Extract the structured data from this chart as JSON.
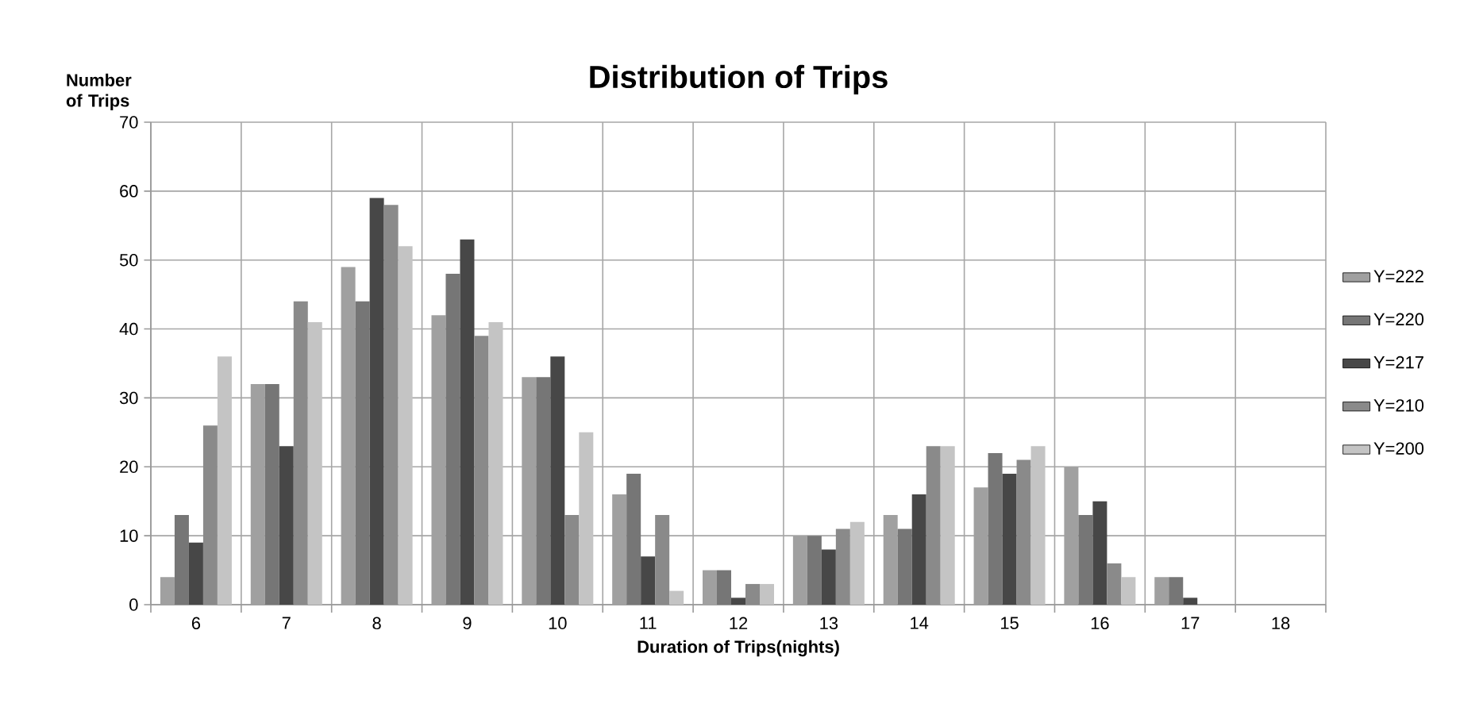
{
  "chart_data": {
    "type": "bar",
    "title": "Distribution of Trips",
    "xlabel": "Duration of Trips(nights)",
    "ylabel": "Number of Trips",
    "categories": [
      "6",
      "7",
      "8",
      "9",
      "10",
      "11",
      "12",
      "13",
      "14",
      "15",
      "16",
      "17",
      "18"
    ],
    "series": [
      {
        "name": "Y=222",
        "color": "#a0a0a0",
        "values": [
          4,
          32,
          49,
          42,
          33,
          16,
          5,
          10,
          13,
          17,
          20,
          4,
          0
        ]
      },
      {
        "name": "Y=220",
        "color": "#767676",
        "values": [
          13,
          32,
          44,
          48,
          33,
          19,
          5,
          10,
          11,
          22,
          13,
          4,
          0
        ]
      },
      {
        "name": "Y=217",
        "color": "#474747",
        "values": [
          9,
          23,
          59,
          53,
          36,
          7,
          1,
          8,
          16,
          19,
          15,
          1,
          0
        ]
      },
      {
        "name": "Y=210",
        "color": "#8a8a8a",
        "values": [
          26,
          44,
          58,
          39,
          13,
          13,
          3,
          11,
          23,
          21,
          6,
          0,
          0
        ]
      },
      {
        "name": "Y=200",
        "color": "#c4c4c4",
        "values": [
          36,
          41,
          52,
          41,
          25,
          2,
          3,
          12,
          23,
          23,
          4,
          0,
          0
        ]
      }
    ],
    "ylim": [
      0,
      70
    ],
    "yticks": [
      0,
      10,
      20,
      30,
      40,
      50,
      60,
      70
    ],
    "grid": true,
    "legend": "right"
  }
}
